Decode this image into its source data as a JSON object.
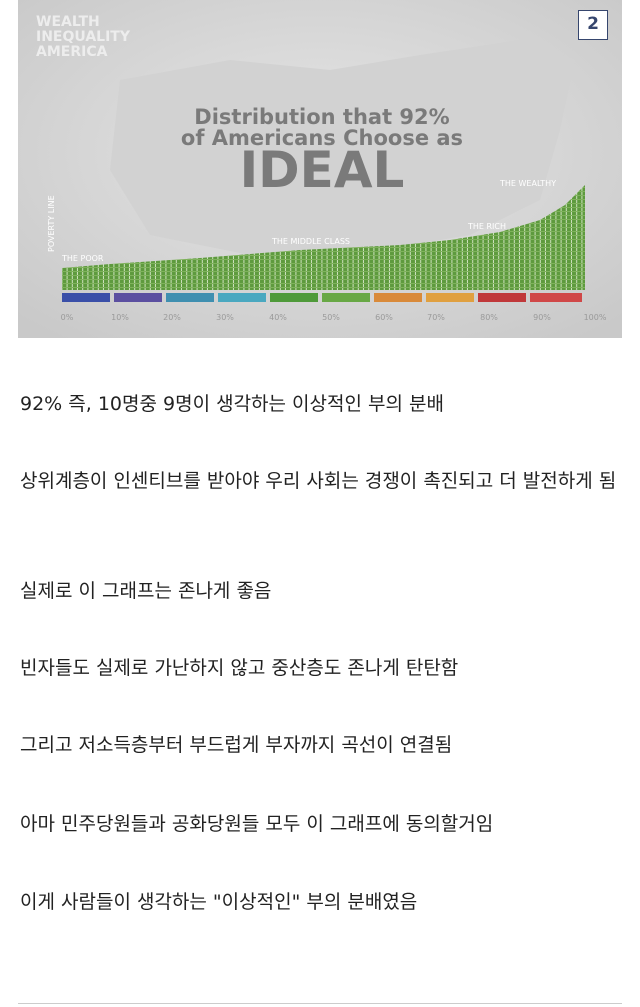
{
  "badge": "2",
  "image": {
    "logo": [
      "WEALTH",
      "INEQUALITY",
      "AMERICA"
    ],
    "title_lines": [
      "Distribution that 92%",
      "of Americans Choose as",
      "IDEAL"
    ],
    "labels": {
      "poverty_line": "POVERTY LINE",
      "poor": "THE POOR",
      "middle": "THE MIDDLE CLASS",
      "rich": "THE RICH",
      "wealthy": "THE WEALTHY"
    },
    "axis_ticks": [
      "0%",
      "10%",
      "20%",
      "30%",
      "40%",
      "50%",
      "60%",
      "70%",
      "80%",
      "90%",
      "100%"
    ]
  },
  "paragraphs": [
    "92% 즉, 10명중 9명이 생각하는 이상적인 부의 분배",
    "상위계층이 인센티브를 받아야 우리 사회는 경쟁이 촉진되고 더 발전하게 됨",
    "실제로 이 그래프는 존나게 좋음",
    "빈자들도 실제로 가난하지 않고 중산층도 존나게 탄탄함",
    "그리고 저소득층부터 부드럽게 부자까지 곡선이 연결됨",
    "아마 민주당원들과 공화당원들 모두 이 그래프에 동의할거임",
    "이게 사람들이 생각하는 \"이상적인\" 부의 분배였음"
  ]
}
